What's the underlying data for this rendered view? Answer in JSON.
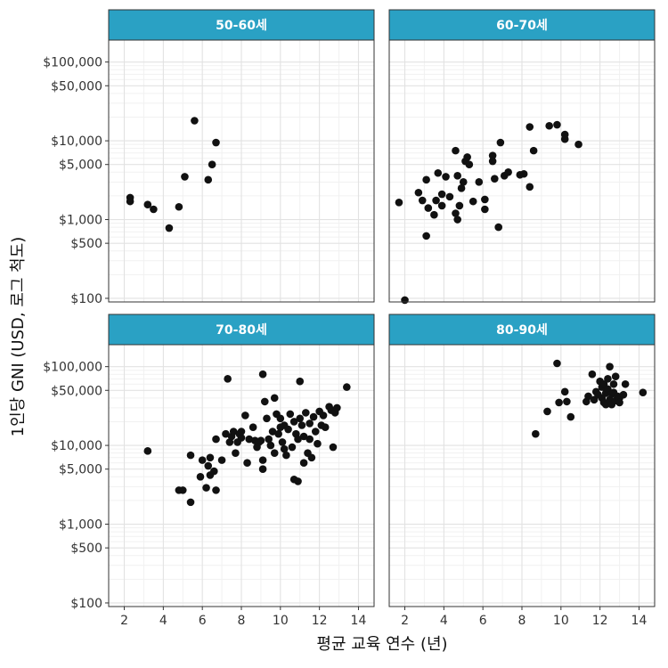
{
  "chart_data": {
    "type": "scatter",
    "layout": "facet-grid-2x2",
    "xlabel": "평균 교육 연수 (년)",
    "ylabel": "1인당 GNI (USD, 로그 척도)",
    "x_scale": "linear",
    "y_scale": "log10",
    "xlim": [
      1.2,
      14.8
    ],
    "ylim": [
      90,
      190000
    ],
    "x_ticks": [
      2,
      4,
      6,
      8,
      10,
      12,
      14
    ],
    "x_tick_labels": [
      "2",
      "4",
      "6",
      "8",
      "10",
      "12",
      "14"
    ],
    "y_ticks": [
      100,
      500,
      1000,
      5000,
      10000,
      50000,
      100000
    ],
    "y_tick_labels": [
      "$100",
      "$500",
      "$1,000",
      "$5,000",
      "$10,000",
      "$50,000",
      "$100,000"
    ],
    "grid": true,
    "point_color": "#111111",
    "strip_color": "#2aa1c4",
    "panels": [
      {
        "label": "50-60세",
        "points": [
          {
            "x": 2.3,
            "y": 1900
          },
          {
            "x": 2.3,
            "y": 1700
          },
          {
            "x": 3.2,
            "y": 1550
          },
          {
            "x": 3.5,
            "y": 1350
          },
          {
            "x": 4.3,
            "y": 780
          },
          {
            "x": 4.8,
            "y": 1450
          },
          {
            "x": 5.1,
            "y": 3500
          },
          {
            "x": 5.6,
            "y": 18000
          },
          {
            "x": 6.3,
            "y": 3200
          },
          {
            "x": 6.5,
            "y": 5000
          },
          {
            "x": 6.7,
            "y": 9500
          }
        ]
      },
      {
        "label": "60-70세",
        "points": [
          {
            "x": 1.7,
            "y": 1650
          },
          {
            "x": 2.0,
            "y": 95
          },
          {
            "x": 2.7,
            "y": 2200
          },
          {
            "x": 2.9,
            "y": 1750
          },
          {
            "x": 3.1,
            "y": 3200
          },
          {
            "x": 3.1,
            "y": 620
          },
          {
            "x": 3.2,
            "y": 1400
          },
          {
            "x": 3.5,
            "y": 1150
          },
          {
            "x": 3.6,
            "y": 1750
          },
          {
            "x": 3.7,
            "y": 3900
          },
          {
            "x": 3.9,
            "y": 2100
          },
          {
            "x": 3.9,
            "y": 1500
          },
          {
            "x": 4.1,
            "y": 3500
          },
          {
            "x": 4.3,
            "y": 1950
          },
          {
            "x": 4.6,
            "y": 7500
          },
          {
            "x": 4.6,
            "y": 1200
          },
          {
            "x": 4.7,
            "y": 1000
          },
          {
            "x": 4.7,
            "y": 3600
          },
          {
            "x": 4.8,
            "y": 1500
          },
          {
            "x": 4.9,
            "y": 2500
          },
          {
            "x": 5.0,
            "y": 3000
          },
          {
            "x": 5.1,
            "y": 5500
          },
          {
            "x": 5.2,
            "y": 6200
          },
          {
            "x": 5.3,
            "y": 5000
          },
          {
            "x": 5.5,
            "y": 1700
          },
          {
            "x": 5.8,
            "y": 3000
          },
          {
            "x": 6.1,
            "y": 1800
          },
          {
            "x": 6.1,
            "y": 1350
          },
          {
            "x": 6.5,
            "y": 6500
          },
          {
            "x": 6.5,
            "y": 5500
          },
          {
            "x": 6.6,
            "y": 3300
          },
          {
            "x": 6.8,
            "y": 800
          },
          {
            "x": 6.9,
            "y": 9500
          },
          {
            "x": 7.1,
            "y": 3600
          },
          {
            "x": 7.3,
            "y": 4000
          },
          {
            "x": 7.9,
            "y": 3700
          },
          {
            "x": 8.1,
            "y": 3800
          },
          {
            "x": 8.4,
            "y": 15000
          },
          {
            "x": 8.4,
            "y": 2600
          },
          {
            "x": 8.6,
            "y": 7500
          },
          {
            "x": 9.4,
            "y": 15500
          },
          {
            "x": 9.8,
            "y": 16000
          },
          {
            "x": 10.2,
            "y": 12000
          },
          {
            "x": 10.2,
            "y": 10500
          },
          {
            "x": 10.9,
            "y": 9000
          }
        ]
      },
      {
        "label": "70-80세",
        "points": [
          {
            "x": 3.2,
            "y": 8500
          },
          {
            "x": 4.8,
            "y": 2700
          },
          {
            "x": 5.0,
            "y": 2700
          },
          {
            "x": 5.4,
            "y": 1900
          },
          {
            "x": 5.4,
            "y": 7500
          },
          {
            "x": 5.9,
            "y": 4000
          },
          {
            "x": 6.0,
            "y": 6500
          },
          {
            "x": 6.2,
            "y": 2900
          },
          {
            "x": 6.3,
            "y": 5500
          },
          {
            "x": 6.4,
            "y": 7000
          },
          {
            "x": 6.4,
            "y": 4200
          },
          {
            "x": 6.6,
            "y": 4700
          },
          {
            "x": 6.7,
            "y": 2700
          },
          {
            "x": 6.7,
            "y": 12000
          },
          {
            "x": 7.0,
            "y": 6500
          },
          {
            "x": 7.2,
            "y": 14000
          },
          {
            "x": 7.3,
            "y": 70000
          },
          {
            "x": 7.4,
            "y": 11000
          },
          {
            "x": 7.5,
            "y": 13000
          },
          {
            "x": 7.6,
            "y": 15000
          },
          {
            "x": 7.7,
            "y": 8000
          },
          {
            "x": 7.8,
            "y": 11000
          },
          {
            "x": 7.9,
            "y": 14000
          },
          {
            "x": 8.0,
            "y": 12500
          },
          {
            "x": 8.0,
            "y": 15000
          },
          {
            "x": 8.2,
            "y": 24000
          },
          {
            "x": 8.3,
            "y": 6000
          },
          {
            "x": 8.4,
            "y": 12000
          },
          {
            "x": 8.6,
            "y": 17000
          },
          {
            "x": 8.7,
            "y": 11500
          },
          {
            "x": 8.8,
            "y": 9500
          },
          {
            "x": 8.9,
            "y": 11000
          },
          {
            "x": 9.0,
            "y": 11500
          },
          {
            "x": 9.1,
            "y": 80000
          },
          {
            "x": 9.1,
            "y": 6500
          },
          {
            "x": 9.1,
            "y": 5000
          },
          {
            "x": 9.2,
            "y": 36000
          },
          {
            "x": 9.3,
            "y": 22000
          },
          {
            "x": 9.4,
            "y": 12000
          },
          {
            "x": 9.5,
            "y": 10000
          },
          {
            "x": 9.6,
            "y": 15000
          },
          {
            "x": 9.7,
            "y": 8000
          },
          {
            "x": 9.7,
            "y": 40000
          },
          {
            "x": 9.8,
            "y": 25000
          },
          {
            "x": 9.9,
            "y": 14000
          },
          {
            "x": 10.0,
            "y": 22000
          },
          {
            "x": 10.0,
            "y": 17000
          },
          {
            "x": 10.1,
            "y": 11000
          },
          {
            "x": 10.2,
            "y": 18000
          },
          {
            "x": 10.2,
            "y": 9000
          },
          {
            "x": 10.3,
            "y": 7500
          },
          {
            "x": 10.4,
            "y": 16000
          },
          {
            "x": 10.5,
            "y": 25000
          },
          {
            "x": 10.6,
            "y": 9500
          },
          {
            "x": 10.7,
            "y": 3700
          },
          {
            "x": 10.7,
            "y": 20000
          },
          {
            "x": 10.8,
            "y": 14000
          },
          {
            "x": 10.9,
            "y": 12000
          },
          {
            "x": 10.9,
            "y": 3500
          },
          {
            "x": 11.0,
            "y": 65000
          },
          {
            "x": 11.0,
            "y": 22000
          },
          {
            "x": 11.1,
            "y": 18000
          },
          {
            "x": 11.2,
            "y": 6000
          },
          {
            "x": 11.2,
            "y": 13000
          },
          {
            "x": 11.3,
            "y": 26000
          },
          {
            "x": 11.4,
            "y": 8000
          },
          {
            "x": 11.5,
            "y": 12000
          },
          {
            "x": 11.5,
            "y": 19000
          },
          {
            "x": 11.6,
            "y": 7000
          },
          {
            "x": 11.7,
            "y": 23000
          },
          {
            "x": 11.8,
            "y": 15000
          },
          {
            "x": 11.9,
            "y": 10500
          },
          {
            "x": 12.0,
            "y": 27000
          },
          {
            "x": 12.1,
            "y": 18000
          },
          {
            "x": 12.2,
            "y": 24000
          },
          {
            "x": 12.3,
            "y": 17000
          },
          {
            "x": 12.5,
            "y": 31000
          },
          {
            "x": 12.6,
            "y": 28000
          },
          {
            "x": 12.7,
            "y": 9500
          },
          {
            "x": 12.8,
            "y": 26000
          },
          {
            "x": 12.9,
            "y": 30000
          },
          {
            "x": 13.4,
            "y": 55000
          }
        ]
      },
      {
        "label": "80-90세",
        "points": [
          {
            "x": 8.7,
            "y": 14000
          },
          {
            "x": 9.3,
            "y": 27000
          },
          {
            "x": 9.8,
            "y": 110000
          },
          {
            "x": 9.9,
            "y": 35000
          },
          {
            "x": 10.2,
            "y": 48000
          },
          {
            "x": 10.3,
            "y": 36000
          },
          {
            "x": 10.5,
            "y": 23000
          },
          {
            "x": 11.3,
            "y": 36000
          },
          {
            "x": 11.4,
            "y": 42000
          },
          {
            "x": 11.6,
            "y": 80000
          },
          {
            "x": 11.7,
            "y": 38000
          },
          {
            "x": 11.8,
            "y": 48000
          },
          {
            "x": 11.9,
            "y": 44000
          },
          {
            "x": 12.0,
            "y": 65000
          },
          {
            "x": 12.1,
            "y": 40000
          },
          {
            "x": 12.1,
            "y": 55000
          },
          {
            "x": 12.2,
            "y": 35000
          },
          {
            "x": 12.2,
            "y": 60000
          },
          {
            "x": 12.3,
            "y": 46000
          },
          {
            "x": 12.3,
            "y": 33000
          },
          {
            "x": 12.4,
            "y": 70000
          },
          {
            "x": 12.4,
            "y": 52000
          },
          {
            "x": 12.5,
            "y": 38000
          },
          {
            "x": 12.5,
            "y": 100000
          },
          {
            "x": 12.6,
            "y": 45000
          },
          {
            "x": 12.6,
            "y": 33000
          },
          {
            "x": 12.7,
            "y": 60000
          },
          {
            "x": 12.7,
            "y": 47000
          },
          {
            "x": 12.8,
            "y": 75000
          },
          {
            "x": 12.8,
            "y": 37000
          },
          {
            "x": 12.9,
            "y": 42000
          },
          {
            "x": 13.0,
            "y": 40000
          },
          {
            "x": 13.0,
            "y": 35000
          },
          {
            "x": 13.2,
            "y": 44000
          },
          {
            "x": 13.3,
            "y": 60000
          },
          {
            "x": 14.2,
            "y": 47000
          }
        ]
      }
    ]
  }
}
